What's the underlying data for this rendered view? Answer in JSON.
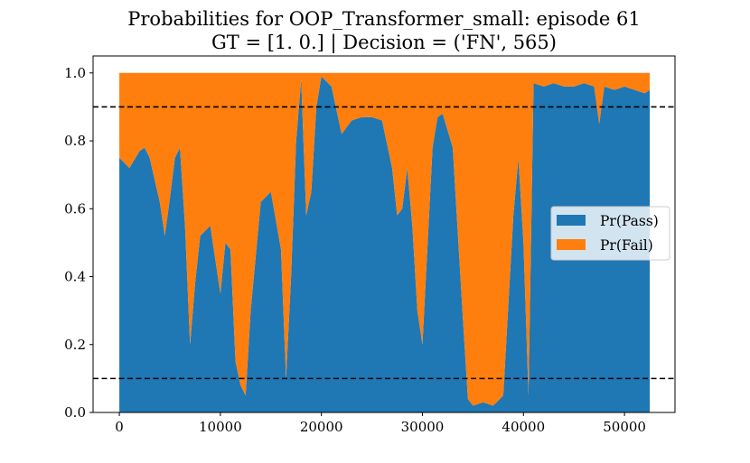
{
  "chart_data": {
    "type": "area",
    "stacked": true,
    "title": "Probabilities for OOP_Transformer_small: episode 61",
    "subtitle": "GT = [1. 0.] | Decision = ('FN', 565)",
    "xlabel": "",
    "ylabel": "",
    "xlim": [
      -2600,
      55000
    ],
    "ylim": [
      0.0,
      1.05
    ],
    "xticks": [
      0,
      10000,
      20000,
      30000,
      40000,
      50000
    ],
    "yticks": [
      0.0,
      0.2,
      0.4,
      0.6,
      0.8,
      1.0
    ],
    "xtick_labels": [
      "0",
      "10000",
      "20000",
      "30000",
      "40000",
      "50000"
    ],
    "ytick_labels": [
      "0.0",
      "0.2",
      "0.4",
      "0.6",
      "0.8",
      "1.0"
    ],
    "thresholds": [
      0.1,
      0.9
    ],
    "legend_position": "center-right",
    "grid": false,
    "colors": {
      "pass": "#1f77b4",
      "fail": "#ff7f0e",
      "threshold": "#000000"
    },
    "x": [
      0,
      1000,
      2000,
      2500,
      3000,
      4000,
      4500,
      5000,
      5500,
      6000,
      6500,
      7000,
      7500,
      8000,
      9000,
      10000,
      10500,
      11000,
      11500,
      12000,
      12500,
      13000,
      14000,
      15000,
      16000,
      16500,
      17000,
      17500,
      18000,
      18500,
      19000,
      19500,
      20000,
      21000,
      22000,
      23000,
      24000,
      25000,
      26000,
      27000,
      27500,
      28000,
      28500,
      29000,
      29500,
      30000,
      31000,
      31500,
      32000,
      33000,
      34000,
      34500,
      35000,
      36000,
      37000,
      38000,
      39000,
      39500,
      40000,
      40500,
      41000,
      42000,
      43000,
      44000,
      45000,
      46000,
      47000,
      47500,
      48000,
      49000,
      50000,
      51000,
      52000,
      52500
    ],
    "series": [
      {
        "name": "Pr(Pass)",
        "values": [
          0.75,
          0.72,
          0.77,
          0.78,
          0.75,
          0.62,
          0.52,
          0.63,
          0.75,
          0.78,
          0.55,
          0.2,
          0.38,
          0.52,
          0.55,
          0.35,
          0.5,
          0.48,
          0.15,
          0.08,
          0.05,
          0.3,
          0.62,
          0.65,
          0.48,
          0.1,
          0.4,
          0.8,
          0.98,
          0.58,
          0.65,
          0.9,
          0.99,
          0.96,
          0.82,
          0.86,
          0.87,
          0.87,
          0.86,
          0.72,
          0.58,
          0.6,
          0.72,
          0.55,
          0.3,
          0.2,
          0.78,
          0.87,
          0.88,
          0.78,
          0.28,
          0.04,
          0.02,
          0.03,
          0.02,
          0.05,
          0.58,
          0.75,
          0.5,
          0.05,
          0.97,
          0.96,
          0.97,
          0.96,
          0.96,
          0.97,
          0.96,
          0.85,
          0.96,
          0.95,
          0.96,
          0.95,
          0.94,
          0.95
        ]
      },
      {
        "name": "Pr(Fail)",
        "values": [
          0.25,
          0.28,
          0.23,
          0.22,
          0.25,
          0.38,
          0.48,
          0.37,
          0.25,
          0.22,
          0.45,
          0.8,
          0.62,
          0.48,
          0.45,
          0.65,
          0.5,
          0.52,
          0.85,
          0.92,
          0.95,
          0.7,
          0.38,
          0.35,
          0.52,
          0.9,
          0.6,
          0.2,
          0.02,
          0.42,
          0.35,
          0.1,
          0.01,
          0.04,
          0.18,
          0.14,
          0.13,
          0.13,
          0.14,
          0.28,
          0.42,
          0.4,
          0.28,
          0.45,
          0.7,
          0.8,
          0.22,
          0.13,
          0.12,
          0.22,
          0.72,
          0.96,
          0.98,
          0.97,
          0.98,
          0.95,
          0.42,
          0.25,
          0.5,
          0.95,
          0.03,
          0.04,
          0.03,
          0.04,
          0.04,
          0.03,
          0.04,
          0.15,
          0.04,
          0.05,
          0.04,
          0.05,
          0.06,
          0.05
        ]
      }
    ]
  }
}
